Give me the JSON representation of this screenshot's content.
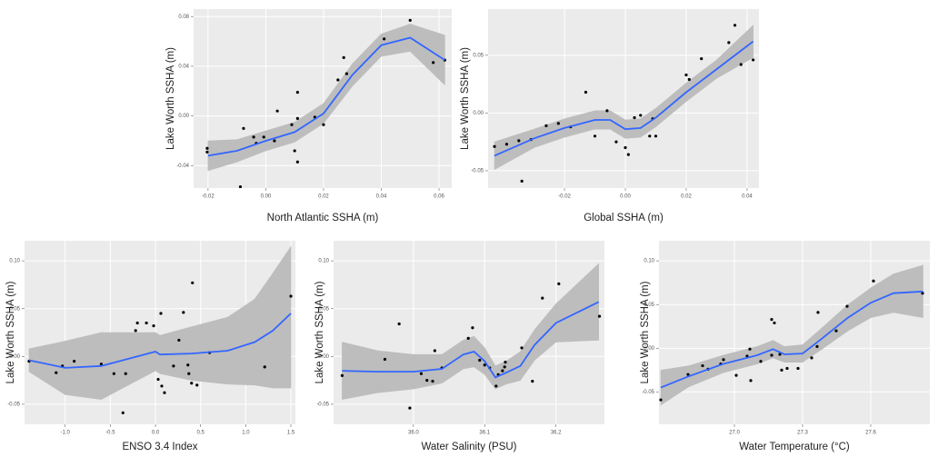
{
  "chart_data": [
    {
      "type": "scatter",
      "x_label": "North Atlantic SSHA (m)",
      "y_label": "Lake Worth SSHA (m)",
      "xlim": [
        -0.025,
        0.0644
      ],
      "ylim": [
        -0.058,
        0.086
      ],
      "xticks": [
        -0.02,
        {
          "value": 0,
          "label": "0.00"
        },
        0.02,
        0.04,
        0.06
      ],
      "yticks": [
        -0.04,
        {
          "value": 0,
          "label": "0.00"
        },
        0.04,
        0.08
      ],
      "grid": true,
      "panel_color": "#ebebeb",
      "point_color": "#000000",
      "line_color": "#3366ff",
      "band_color": "#bdbdbd",
      "points": {
        "x": [
          -0.0203,
          -0.0203,
          -0.0088,
          -0.0077,
          -0.0042,
          -0.0033,
          -0.0007,
          0.003,
          0.004,
          0.009,
          0.011,
          0.01,
          0.011,
          0.011,
          0.017,
          0.02,
          0.025,
          0.027,
          0.028,
          0.041,
          0.05,
          0.058,
          0.062
        ],
        "y": [
          -0.026,
          -0.029,
          -0.057,
          -0.01,
          -0.017,
          -0.022,
          -0.017,
          -0.02,
          0.004,
          -0.007,
          -0.002,
          -0.028,
          -0.037,
          0.019,
          -0.001,
          -0.007,
          0.029,
          0.047,
          0.034,
          0.062,
          0.077,
          0.043,
          0.045
        ]
      },
      "smooth": {
        "x": [
          -0.02,
          -0.01,
          0,
          0.01,
          0.02,
          0.03,
          0.04,
          0.05,
          0.062
        ],
        "y": [
          -0.032,
          -0.028,
          -0.02,
          -0.013,
          0.002,
          0.033,
          0.057,
          0.063,
          0.045
        ],
        "lower": [
          -0.044,
          -0.037,
          -0.028,
          -0.021,
          -0.006,
          0.024,
          0.048,
          0.052,
          0.025
        ],
        "upper": [
          -0.02,
          -0.019,
          -0.012,
          -0.005,
          0.01,
          0.042,
          0.066,
          0.074,
          0.065
        ]
      }
    },
    {
      "type": "scatter",
      "x_label": "Global SSHA (m)",
      "y_label": "Lake Worth SSHA (m)",
      "xlim": [
        -0.0451,
        0.0439
      ],
      "ylim": [
        -0.065,
        0.09
      ],
      "xticks": [
        -0.02,
        {
          "value": 0,
          "label": "0.00"
        },
        0.02,
        0.04
      ],
      "yticks": [
        -0.05,
        {
          "value": 0,
          "label": "0.00"
        },
        0.05
      ],
      "grid": true,
      "panel_color": "#ebebeb",
      "point_color": "#000000",
      "line_color": "#3366ff",
      "band_color": "#bdbdbd",
      "points": {
        "x": [
          -0.043,
          -0.039,
          -0.035,
          -0.034,
          -0.031,
          -0.026,
          -0.022,
          -0.018,
          -0.013,
          -0.01,
          -0.006,
          -0.003,
          0.0,
          0.001,
          0.003,
          0.005,
          0.008,
          0.009,
          0.01,
          0.02,
          0.021,
          0.025,
          0.034,
          0.036,
          0.038,
          0.042
        ],
        "y": [
          -0.029,
          -0.027,
          -0.024,
          -0.059,
          -0.023,
          -0.011,
          -0.009,
          -0.012,
          0.018,
          -0.02,
          0.002,
          -0.025,
          -0.03,
          -0.036,
          -0.004,
          -0.002,
          -0.02,
          -0.005,
          -0.02,
          0.033,
          0.029,
          0.047,
          0.061,
          0.076,
          0.042,
          0.046
        ]
      },
      "smooth": {
        "x": [
          -0.043,
          -0.03,
          -0.02,
          -0.01,
          -0.005,
          0,
          0.005,
          0.01,
          0.02,
          0.03,
          0.042
        ],
        "y": [
          -0.037,
          -0.022,
          -0.013,
          -0.006,
          -0.006,
          -0.014,
          -0.013,
          -0.004,
          0.018,
          0.038,
          0.062
        ],
        "lower": [
          -0.049,
          -0.03,
          -0.021,
          -0.014,
          -0.014,
          -0.022,
          -0.021,
          -0.012,
          0.01,
          0.03,
          0.048
        ],
        "upper": [
          -0.025,
          -0.014,
          -0.005,
          0.002,
          0.002,
          -0.006,
          -0.005,
          0.004,
          0.026,
          0.046,
          0.076
        ]
      }
    },
    {
      "type": "scatter",
      "x_label": "ENSO 3.4 Index",
      "y_label": "Lake Worth SSHA (m)",
      "xlim": [
        -1.45,
        1.55
      ],
      "ylim": [
        -0.071,
        0.121
      ],
      "xticks": [
        {
          "value": -1,
          "label": "-1.0"
        },
        -0.5,
        {
          "value": 0,
          "label": "0.0"
        },
        0.5,
        {
          "value": 1,
          "label": "1.0"
        },
        1.5
      ],
      "yticks": [
        -0.05,
        {
          "value": 0,
          "label": "0.00"
        },
        0.05,
        {
          "value": 0.1,
          "label": "0.10"
        }
      ],
      "grid": true,
      "panel_color": "#ebebeb",
      "point_color": "#000000",
      "line_color": "#3366ff",
      "band_color": "#bdbdbd",
      "points": {
        "x": [
          -1.4,
          -1.1,
          -1.03,
          -0.9,
          -0.6,
          -0.46,
          -0.36,
          -0.33,
          -0.22,
          -0.2,
          -0.1,
          -0.02,
          0.03,
          0.06,
          0.07,
          0.1,
          0.2,
          0.26,
          0.31,
          0.36,
          0.37,
          0.4,
          0.41,
          0.46,
          0.6,
          1.21,
          1.5
        ],
        "y": [
          -0.005,
          -0.017,
          -0.01,
          -0.005,
          -0.008,
          -0.018,
          -0.059,
          -0.018,
          0.027,
          0.035,
          0.035,
          0.032,
          -0.024,
          0.045,
          -0.031,
          -0.038,
          -0.01,
          0.017,
          0.046,
          -0.009,
          -0.018,
          -0.028,
          0.077,
          -0.03,
          0.004,
          -0.011,
          0.063
        ]
      },
      "smooth": {
        "x": [
          -1.4,
          -1.0,
          -0.6,
          -0.2,
          0,
          0.05,
          0.4,
          0.8,
          1.1,
          1.3,
          1.5
        ],
        "y": [
          -0.004,
          -0.012,
          -0.01,
          0,
          0.005,
          0.002,
          0.003,
          0.006,
          0.015,
          0.027,
          0.045
        ],
        "lower": [
          -0.016,
          -0.04,
          -0.045,
          -0.025,
          -0.015,
          -0.018,
          -0.025,
          -0.029,
          -0.03,
          -0.033,
          -0.033
        ],
        "upper": [
          0.008,
          0.016,
          0.025,
          0.025,
          0.025,
          0.022,
          0.031,
          0.041,
          0.06,
          0.087,
          0.115
        ]
      }
    },
    {
      "type": "scatter",
      "x_label": "Water Salinity (PSU)",
      "y_label": "Lake Worth SSHA (m)",
      "xlim": [
        35.888,
        36.268
      ],
      "ylim": [
        -0.071,
        0.121
      ],
      "xticks": [
        {
          "value": 36,
          "label": "36.0"
        },
        36.1,
        36.2
      ],
      "yticks": [
        -0.05,
        {
          "value": 0,
          "label": "0.00"
        },
        0.05,
        {
          "value": 0.1,
          "label": "0.10"
        }
      ],
      "grid": true,
      "panel_color": "#ebebeb",
      "point_color": "#000000",
      "line_color": "#3366ff",
      "band_color": "#bdbdbd",
      "points": {
        "x": [
          35.9,
          35.96,
          35.98,
          35.995,
          36.011,
          36.019,
          36.027,
          36.03,
          36.04,
          36.077,
          36.083,
          36.093,
          36.1,
          36.107,
          36.116,
          36.119,
          36.125,
          36.128,
          36.129,
          36.152,
          36.167,
          36.181,
          36.204,
          36.261
        ],
        "y": [
          -0.02,
          -0.003,
          0.034,
          -0.054,
          -0.018,
          -0.025,
          -0.026,
          0.006,
          -0.012,
          0.019,
          0.03,
          -0.004,
          -0.009,
          -0.012,
          -0.031,
          -0.019,
          -0.015,
          -0.011,
          -0.006,
          0.009,
          -0.026,
          0.061,
          0.076,
          0.042
        ]
      },
      "smooth": {
        "x": [
          35.9,
          35.95,
          36.0,
          36.04,
          36.07,
          36.085,
          36.1,
          36.115,
          36.13,
          36.15,
          36.17,
          36.2,
          36.26
        ],
        "y": [
          -0.015,
          -0.016,
          -0.016,
          -0.013,
          0.002,
          0.005,
          -0.005,
          -0.022,
          -0.017,
          -0.01,
          0.012,
          0.035,
          0.057
        ],
        "lower": [
          -0.045,
          -0.038,
          -0.034,
          -0.028,
          -0.013,
          -0.011,
          -0.019,
          -0.034,
          -0.029,
          -0.025,
          -0.004,
          0.015,
          0.017
        ],
        "upper": [
          0.015,
          0.006,
          0.002,
          0.002,
          0.017,
          0.021,
          0.009,
          -0.01,
          -0.005,
          0.005,
          0.028,
          0.055,
          0.097
        ]
      }
    },
    {
      "type": "scatter",
      "x_label": "Water Temperature (°C)",
      "y_label": "Lake Worth SSHA (m)",
      "xlim": [
        26.668,
        27.86
      ],
      "ylim": [
        -0.087,
        0.123
      ],
      "xticks": [
        {
          "value": 27,
          "label": "27.0"
        },
        27.3,
        27.6
      ],
      "yticks": [
        -0.05,
        {
          "value": 0,
          "label": "0.00"
        },
        0.05,
        {
          "value": 0.1,
          "label": "0.10"
        }
      ],
      "grid": true,
      "panel_color": "#ebebeb",
      "point_color": "#000000",
      "line_color": "#3366ff",
      "band_color": "#bdbdbd",
      "points": {
        "x": [
          26.676,
          26.796,
          26.86,
          26.884,
          26.94,
          26.952,
          27.008,
          27.056,
          27.068,
          27.072,
          27.116,
          27.164,
          27.164,
          27.176,
          27.2,
          27.208,
          27.232,
          27.28,
          27.34,
          27.364,
          27.368,
          27.448,
          27.496,
          27.612,
          27.828
        ],
        "y": [
          -0.059,
          -0.03,
          -0.02,
          -0.024,
          -0.018,
          -0.013,
          -0.031,
          -0.009,
          -0.001,
          -0.037,
          -0.015,
          -0.008,
          0.033,
          0.029,
          -0.007,
          -0.025,
          -0.023,
          -0.023,
          -0.011,
          0.002,
          0.041,
          0.02,
          0.048,
          0.077,
          0.063
        ]
      },
      "smooth": {
        "x": [
          26.676,
          26.8,
          26.95,
          27.1,
          27.17,
          27.22,
          27.3,
          27.38,
          27.5,
          27.6,
          27.7,
          27.83
        ],
        "y": [
          -0.045,
          -0.032,
          -0.018,
          -0.008,
          -0.001,
          -0.007,
          -0.006,
          0.01,
          0.035,
          0.052,
          0.063,
          0.065
        ],
        "lower": [
          -0.065,
          -0.044,
          -0.028,
          -0.018,
          -0.011,
          -0.016,
          -0.016,
          -0.002,
          0.02,
          0.035,
          0.041,
          0.035
        ],
        "upper": [
          -0.025,
          -0.02,
          -0.008,
          0.002,
          0.009,
          0.002,
          0.004,
          0.022,
          0.05,
          0.069,
          0.085,
          0.095
        ]
      }
    }
  ]
}
